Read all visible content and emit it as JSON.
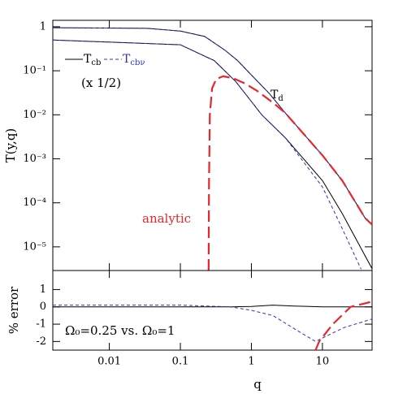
{
  "chart_data": [
    {
      "type": "line",
      "ylabel": "T(y,q)",
      "log_x": true,
      "log_y": true,
      "xlim": [
        0.0016,
        50
      ],
      "ylim": [
        2.9e-06,
        1.4
      ],
      "yticks": [
        1,
        {
          "value": 0.1,
          "label": "10⁻¹"
        },
        {
          "value": 0.01,
          "label": "10⁻²"
        },
        {
          "value": 0.001,
          "label": "10⁻³"
        },
        {
          "value": 0.0001,
          "label": "10⁻⁴"
        },
        {
          "value": 1e-05,
          "label": "10⁻⁵"
        }
      ],
      "annotations": [
        {
          "text": "(x 1/2)"
        },
        {
          "text": "T",
          "sub": "d"
        },
        {
          "text": "analytic",
          "color": "#e8262b"
        }
      ],
      "series": [
        {
          "label": "T",
          "label_sub": "cb",
          "color": "#000000",
          "dashed": false,
          "x": [
            0.0016,
            0.034,
            0.1,
            0.22,
            0.43,
            0.64,
            1,
            1.8,
            3,
            10,
            19,
            40,
            50
          ],
          "values": [
            0.95,
            0.92,
            0.8,
            0.6,
            0.29,
            0.17,
            0.08,
            0.03,
            0.011,
            0.0012,
            0.00032,
            4.5e-05,
            3.2e-05
          ]
        },
        {
          "label": "T",
          "label_sub": "cbν",
          "color": "#3030c0",
          "dashed": true,
          "x": [
            0.0016,
            0.034,
            0.1,
            0.22,
            0.43,
            0.64,
            1,
            1.8,
            3,
            10,
            19,
            40,
            50
          ],
          "values": [
            0.95,
            0.92,
            0.8,
            0.6,
            0.29,
            0.17,
            0.08,
            0.03,
            0.011,
            0.0012,
            0.00032,
            4.5e-05,
            3.2e-05
          ]
        },
        {
          "color": "#000000",
          "dashed": false,
          "x": [
            0.0016,
            0.1,
            0.3,
            0.6,
            1,
            1.4,
            3,
            10,
            19,
            50
          ],
          "values": [
            0.5,
            0.39,
            0.17,
            0.057,
            0.02,
            0.01,
            0.003,
            0.00032,
            5.7e-05,
            3.2e-06
          ]
        },
        {
          "color": "#3030c0",
          "dashed": true,
          "x": [
            0.0016,
            0.1,
            0.3,
            0.6,
            1,
            1.4,
            3,
            10,
            19,
            35
          ],
          "values": [
            0.5,
            0.39,
            0.17,
            0.057,
            0.02,
            0.01,
            0.003,
            0.00023,
            2.6e-05,
            3.1e-06
          ]
        },
        {
          "color": "#e8262b",
          "dashed": true,
          "wide": true,
          "x": [
            0.25,
            0.253,
            0.26,
            0.28,
            0.32,
            0.4,
            0.55,
            0.8,
            1.2,
            2,
            3,
            10,
            19,
            40,
            50
          ],
          "values": [
            2.9e-06,
            0.0003,
            0.01,
            0.04,
            0.065,
            0.075,
            0.068,
            0.052,
            0.035,
            0.019,
            0.011,
            0.0012,
            0.00032,
            4.5e-05,
            3.2e-05
          ]
        }
      ]
    },
    {
      "type": "line",
      "xlabel": "q",
      "ylabel": "% error",
      "log_x": true,
      "xlim": [
        0.0016,
        50
      ],
      "ylim": [
        -2.5,
        2.1
      ],
      "xticks": [
        0.01,
        0.1,
        1,
        10
      ],
      "yticks": [
        -2,
        -1,
        0,
        1
      ],
      "annotation": "Ω₀=0.25 vs. Ω₀=1",
      "series": [
        {
          "color": "#000000",
          "dashed": false,
          "x": [
            0.0016,
            0.5,
            1,
            2,
            4,
            10,
            20,
            50
          ],
          "values": [
            0,
            0,
            0.02,
            0.1,
            0.05,
            0,
            0,
            0
          ]
        },
        {
          "color": "#3030c0",
          "dashed": true,
          "x": [
            0.0016,
            0.1,
            0.5,
            1,
            2,
            5,
            8,
            20,
            50
          ],
          "values": [
            0.1,
            0.1,
            0,
            -0.2,
            -0.5,
            -1.5,
            -2,
            -1.2,
            -0.7
          ]
        },
        {
          "color": "#e8262b",
          "dashed": true,
          "wide": true,
          "x": [
            8,
            9,
            14,
            25,
            50
          ],
          "values": [
            -2.5,
            -2,
            -1,
            0,
            0.3
          ]
        }
      ]
    }
  ]
}
